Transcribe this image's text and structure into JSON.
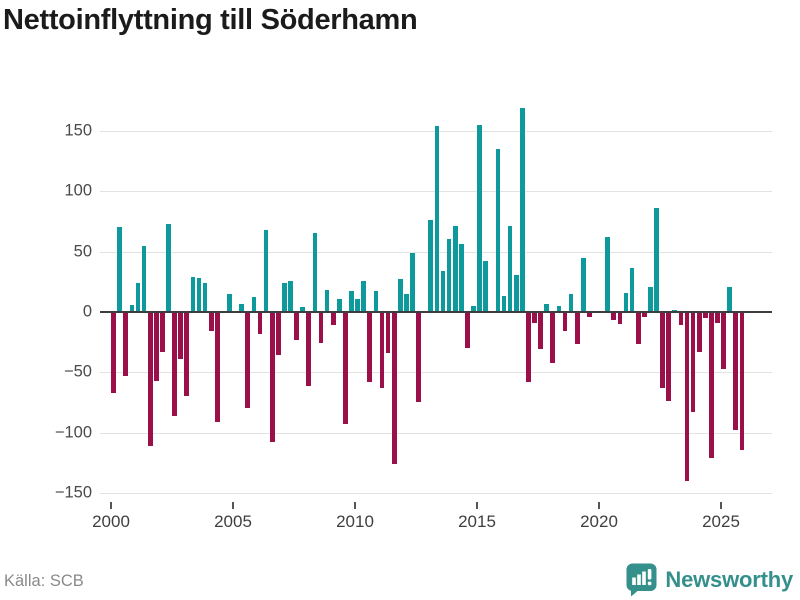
{
  "title": "Nettoinflyttning till Söderhamn",
  "footer": {
    "source": "Källa: SCB",
    "logo_text": "Newsworthy"
  },
  "colors": {
    "positive_bar": "#0e999c",
    "negative_bar": "#9b1048",
    "gridline": "#e3e3e3",
    "zero_line": "#3d3d3d",
    "axis_text": "#4a4a4a",
    "title_text": "#1b1b1b",
    "source_text": "#8a8a8a",
    "logo_teal": "#35908c"
  },
  "chart_data": {
    "type": "bar",
    "title": "Nettoinflyttning till Söderhamn",
    "frequency": "quarterly",
    "start_year": 2000,
    "start_quarter": 1,
    "end_year": 2025,
    "end_quarter": 4,
    "grid": true,
    "legend": false,
    "ylim": [
      -158,
      172
    ],
    "y_ticks": [
      150,
      100,
      50,
      0,
      -50,
      -100,
      -150
    ],
    "y_tick_labels": [
      "150",
      "100",
      "50",
      "0",
      "−50",
      "−100",
      "−150"
    ],
    "x_tick_years": [
      2000,
      2005,
      2010,
      2015,
      2020,
      2025
    ],
    "x_tick_labels": [
      "2000",
      "2005",
      "2010",
      "2015",
      "2020",
      "2025"
    ],
    "values": [
      -66,
      70,
      -52,
      6,
      24,
      55,
      -110,
      -56,
      -32,
      73,
      -85,
      -38,
      -69,
      29,
      28,
      24,
      -15,
      -90,
      0,
      15,
      0,
      7,
      -79,
      12,
      -17,
      68,
      -107,
      -35,
      24,
      26,
      -22,
      4,
      -60,
      65,
      -25,
      18,
      -10,
      11,
      -92,
      17,
      11,
      26,
      -57,
      17,
      -62,
      -33,
      -125,
      27,
      15,
      49,
      -74,
      0,
      76,
      154,
      34,
      60,
      71,
      56,
      -29,
      5,
      155,
      42,
      0,
      135,
      13,
      71,
      31,
      169,
      -57,
      -8,
      -30,
      7,
      -41,
      5,
      -15,
      15,
      -26,
      45,
      -3,
      0,
      0,
      62,
      -6,
      -9,
      16,
      36,
      -26,
      -3,
      21,
      86,
      -62,
      -73,
      2,
      -10,
      -139,
      -82,
      -32,
      -4,
      -120,
      -8,
      -46,
      21,
      -97,
      -113
    ]
  }
}
